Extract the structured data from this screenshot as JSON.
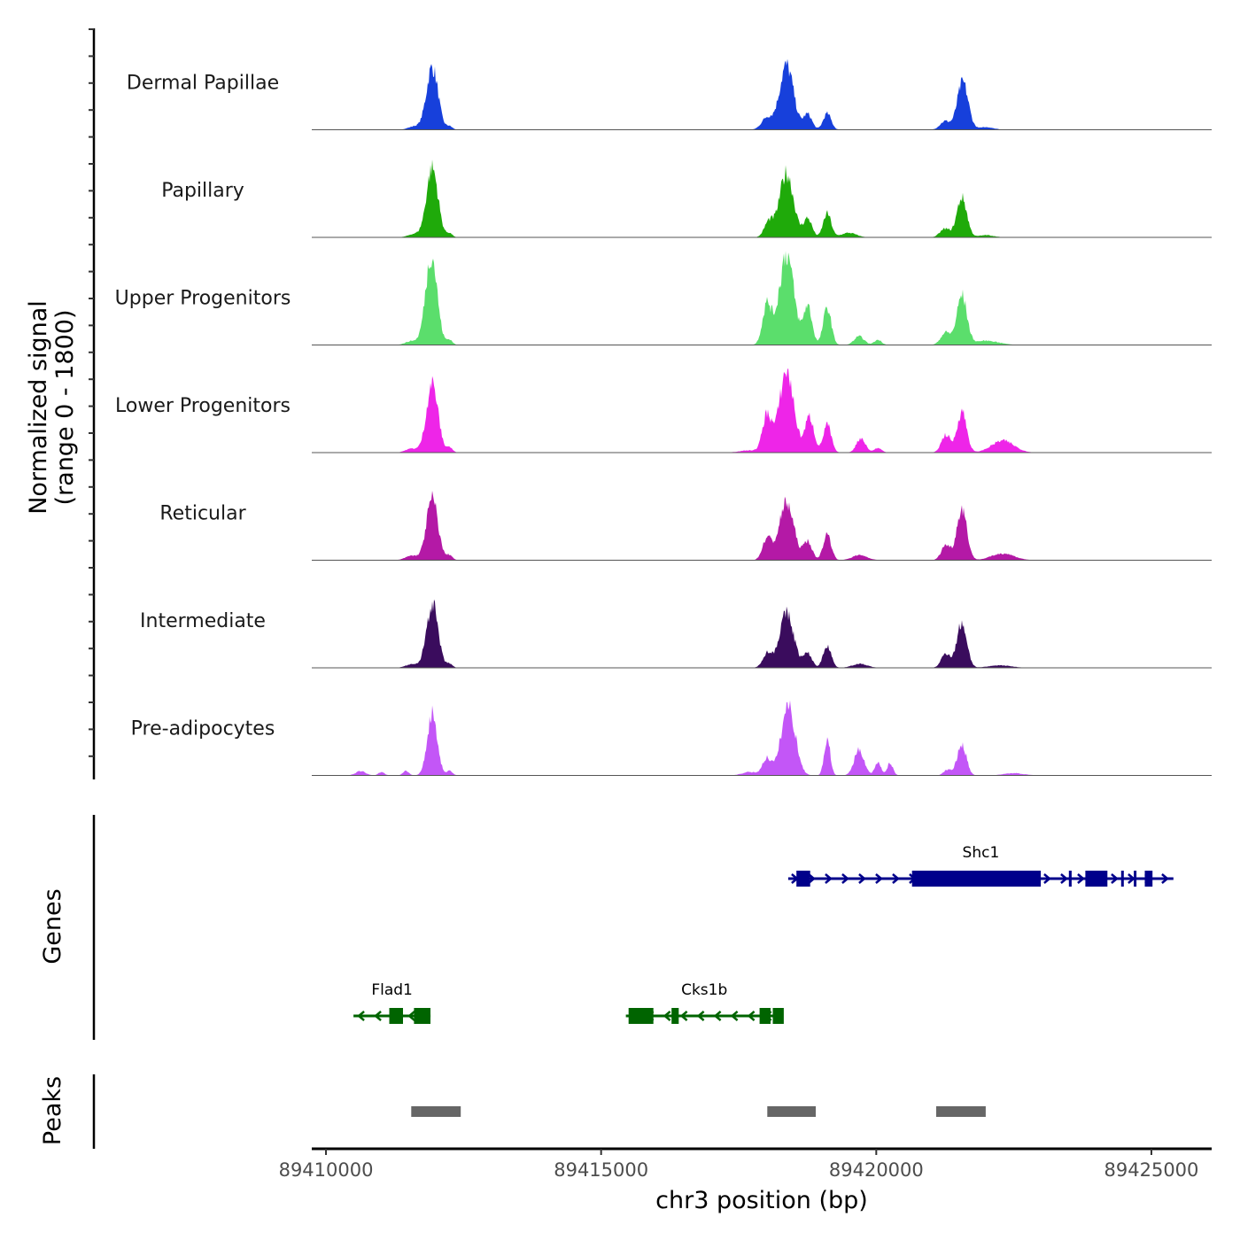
{
  "chart_data": {
    "type": "area",
    "title": "",
    "xlabel": "chr3 position (bp)",
    "ylabel": "Normalized signal\n(range 0 - 1800)",
    "ylabel_lines": [
      "Normalized signal",
      "(range 0 - 1800)"
    ],
    "ylim": [
      0,
      1800
    ],
    "xlim": [
      89409742,
      89426095
    ],
    "x_ticks": [
      89410000,
      89415000,
      89420000,
      89425000
    ],
    "x_tick_labels": [
      "89410000",
      "89415000",
      "89420000",
      "89425000"
    ],
    "grid": false,
    "legend": "none",
    "series": [
      {
        "name": "Dermal Papillae",
        "color": "#1740DB",
        "peaks": [
          [
            89411610,
            60,
            250
          ],
          [
            89411931,
            1100,
            230
          ],
          [
            89412245,
            60,
            120
          ],
          [
            89418015,
            210,
            220
          ],
          [
            89418369,
            1130,
            280
          ],
          [
            89418755,
            270,
            170
          ],
          [
            89419109,
            285,
            160
          ],
          [
            89421250,
            150,
            200
          ],
          [
            89421572,
            835,
            220
          ],
          [
            89422000,
            45,
            300
          ]
        ]
      },
      {
        "name": "Papillary",
        "color": "#1FAA0A",
        "peaks": [
          [
            89411610,
            60,
            250
          ],
          [
            89411931,
            1220,
            230
          ],
          [
            89412245,
            70,
            120
          ],
          [
            89418047,
            270,
            180
          ],
          [
            89418369,
            1130,
            280
          ],
          [
            89418755,
            330,
            170
          ],
          [
            89419109,
            420,
            160
          ],
          [
            89419500,
            80,
            300
          ],
          [
            89421250,
            150,
            200
          ],
          [
            89421556,
            700,
            200
          ],
          [
            89422000,
            40,
            300
          ]
        ]
      },
      {
        "name": "Upper Progenitors",
        "color": "#5BDE6C",
        "peaks": [
          [
            89411560,
            70,
            250
          ],
          [
            89411915,
            1590,
            230
          ],
          [
            89412245,
            90,
            120
          ],
          [
            89418015,
            715,
            180
          ],
          [
            89418369,
            1610,
            290
          ],
          [
            89418755,
            685,
            170
          ],
          [
            89419109,
            655,
            160
          ],
          [
            89419690,
            150,
            200
          ],
          [
            89420030,
            90,
            150
          ],
          [
            89421265,
            220,
            200
          ],
          [
            89421556,
            865,
            200
          ],
          [
            89422000,
            75,
            500
          ]
        ]
      },
      {
        "name": "Lower Progenitors",
        "color": "#EE25E8",
        "peaks": [
          [
            89411560,
            70,
            250
          ],
          [
            89411931,
            1220,
            230
          ],
          [
            89412245,
            90,
            120
          ],
          [
            89418015,
            655,
            180
          ],
          [
            89418369,
            1430,
            290
          ],
          [
            89418787,
            625,
            180
          ],
          [
            89419109,
            490,
            160
          ],
          [
            89419722,
            255,
            180
          ],
          [
            89420030,
            80,
            150
          ],
          [
            89421265,
            315,
            180
          ],
          [
            89421556,
            730,
            190
          ],
          [
            89422300,
            210,
            450
          ],
          [
            89417700,
            40,
            400
          ]
        ]
      },
      {
        "name": "Reticular",
        "color": "#B419A6",
        "peaks": [
          [
            89411560,
            80,
            250
          ],
          [
            89411931,
            1085,
            230
          ],
          [
            89412245,
            90,
            120
          ],
          [
            89418015,
            385,
            180
          ],
          [
            89418369,
            1010,
            290
          ],
          [
            89418755,
            330,
            170
          ],
          [
            89419109,
            460,
            160
          ],
          [
            89419700,
            90,
            300
          ],
          [
            89421265,
            270,
            180
          ],
          [
            89421556,
            920,
            200
          ],
          [
            89422300,
            120,
            450
          ]
        ]
      },
      {
        "name": "Intermediate",
        "color": "#3A0C5D",
        "peaks": [
          [
            89411560,
            60,
            250
          ],
          [
            89411931,
            1130,
            230
          ],
          [
            89412245,
            70,
            120
          ],
          [
            89418015,
            250,
            180
          ],
          [
            89418369,
            950,
            290
          ],
          [
            89418755,
            250,
            170
          ],
          [
            89419109,
            400,
            160
          ],
          [
            89419700,
            70,
            300
          ],
          [
            89421265,
            255,
            180
          ],
          [
            89421556,
            790,
            200
          ],
          [
            89422250,
            45,
            450
          ]
        ]
      },
      {
        "name": "Pre-adipocytes",
        "color": "#C356F7",
        "peaks": [
          [
            89410630,
            75,
            200
          ],
          [
            89411010,
            60,
            120
          ],
          [
            89411450,
            80,
            120
          ],
          [
            89411931,
            1085,
            200
          ],
          [
            89412245,
            80,
            120
          ],
          [
            89417700,
            60,
            300
          ],
          [
            89418015,
            300,
            180
          ],
          [
            89418401,
            1220,
            280
          ],
          [
            89419109,
            655,
            120
          ],
          [
            89419690,
            445,
            200
          ],
          [
            89420030,
            240,
            120
          ],
          [
            89420250,
            210,
            120
          ],
          [
            89421556,
            550,
            180
          ],
          [
            89421300,
            100,
            160
          ],
          [
            89422500,
            40,
            400
          ]
        ]
      }
    ],
    "genes": [
      {
        "name": "Shc1",
        "strand": "+",
        "color": "#00008B",
        "row": 1,
        "start": 89418400,
        "end": 89425400,
        "exons": [
          [
            89418550,
            89418800
          ],
          [
            89420650,
            89422990
          ],
          [
            89423500,
            89423550
          ],
          [
            89423800,
            89424200
          ],
          [
            89424450,
            89424480
          ],
          [
            89424680,
            89424710
          ],
          [
            89424880,
            89425020
          ]
        ]
      },
      {
        "name": "Flad1",
        "strand": "-",
        "color": "#006400",
        "row": 2,
        "start": 89410500,
        "end": 89411900,
        "exons": [
          [
            89411150,
            89411400
          ],
          [
            89411600,
            89411900
          ]
        ]
      },
      {
        "name": "Cks1b",
        "strand": "-",
        "color": "#006400",
        "row": 2,
        "start": 89415450,
        "end": 89418300,
        "exons": [
          [
            89415500,
            89415950
          ],
          [
            89416280,
            89416410
          ],
          [
            89417880,
            89418080
          ],
          [
            89418120,
            89418320
          ]
        ]
      }
    ],
    "peaks_track": {
      "name": "Peaks",
      "color": "#666666",
      "regions": [
        [
          89411550,
          89412450
        ],
        [
          89418020,
          89418900
        ],
        [
          89421090,
          89421990
        ]
      ]
    },
    "panel_labels": {
      "genes": "Genes",
      "peaks": "Peaks"
    }
  }
}
